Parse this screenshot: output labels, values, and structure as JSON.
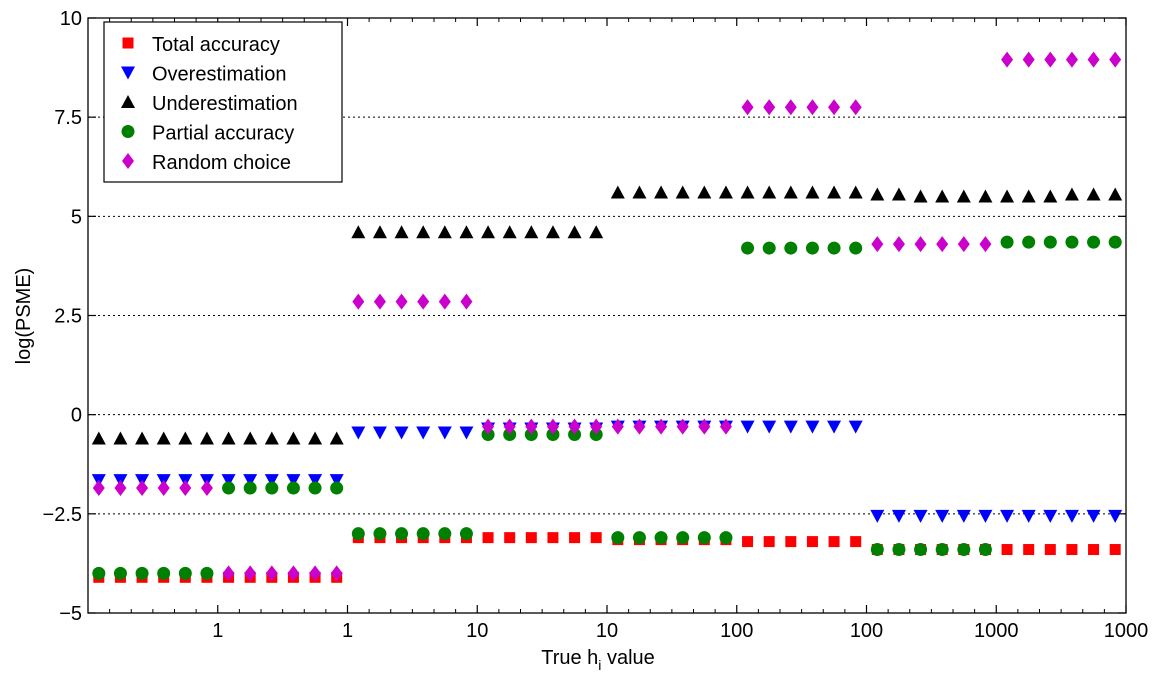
{
  "chart_data": {
    "type": "scatter",
    "title": "",
    "xlabel": {
      "prefix": "True h",
      "subscript": "i",
      "suffix": " value"
    },
    "ylabel": "log(PSME)",
    "ylim": [
      -5,
      10
    ],
    "yticks": [
      -5,
      -2.5,
      0,
      2.5,
      5,
      7.5,
      10
    ],
    "ytick_labels": [
      "−5",
      "−2.5",
      "0",
      "2.5",
      "5",
      "7.5",
      "10"
    ],
    "grid": "horizontal dotted lines at y ticks",
    "legend_position": "top-left",
    "x_tick_labels": [
      "1",
      "1",
      "10",
      "10",
      "100",
      "100",
      "1000",
      "1000"
    ],
    "series": [
      {
        "name": "Total accuracy",
        "marker": "square",
        "color": "#ff0000",
        "points": [
          [
            0.5,
            -4.1
          ],
          [
            1.5,
            -4.1
          ],
          [
            2.5,
            -4.1
          ],
          [
            3.5,
            -4.1
          ],
          [
            4.5,
            -4.1
          ],
          [
            5.5,
            -4.1
          ],
          [
            6.5,
            -4.1
          ],
          [
            7.5,
            -4.1
          ],
          [
            8.5,
            -4.1
          ],
          [
            9.5,
            -4.1
          ],
          [
            10.5,
            -4.1
          ],
          [
            11.5,
            -4.1
          ],
          [
            12.5,
            -3.1
          ],
          [
            13.5,
            -3.1
          ],
          [
            14.5,
            -3.1
          ],
          [
            15.5,
            -3.1
          ],
          [
            16.5,
            -3.1
          ],
          [
            17.5,
            -3.1
          ],
          [
            18.5,
            -3.1
          ],
          [
            19.5,
            -3.1
          ],
          [
            20.5,
            -3.1
          ],
          [
            21.5,
            -3.1
          ],
          [
            22.5,
            -3.1
          ],
          [
            23.5,
            -3.1
          ],
          [
            24.5,
            -3.15
          ],
          [
            25.5,
            -3.15
          ],
          [
            26.5,
            -3.15
          ],
          [
            27.5,
            -3.15
          ],
          [
            28.5,
            -3.15
          ],
          [
            29.5,
            -3.15
          ],
          [
            30.5,
            -3.2
          ],
          [
            31.5,
            -3.2
          ],
          [
            32.5,
            -3.2
          ],
          [
            33.5,
            -3.2
          ],
          [
            34.5,
            -3.2
          ],
          [
            35.5,
            -3.2
          ],
          [
            36.5,
            -3.4
          ],
          [
            37.5,
            -3.4
          ],
          [
            38.5,
            -3.4
          ],
          [
            39.5,
            -3.4
          ],
          [
            40.5,
            -3.4
          ],
          [
            41.5,
            -3.4
          ],
          [
            42.5,
            -3.4
          ],
          [
            43.5,
            -3.4
          ],
          [
            44.5,
            -3.4
          ],
          [
            45.5,
            -3.4
          ],
          [
            46.5,
            -3.4
          ],
          [
            47.5,
            -3.4
          ]
        ]
      },
      {
        "name": "Overestimation",
        "marker": "triangle-down",
        "color": "#0000ff",
        "points": [
          [
            0.5,
            -1.65
          ],
          [
            1.5,
            -1.65
          ],
          [
            2.5,
            -1.65
          ],
          [
            3.5,
            -1.65
          ],
          [
            4.5,
            -1.65
          ],
          [
            5.5,
            -1.65
          ],
          [
            6.5,
            -1.65
          ],
          [
            7.5,
            -1.65
          ],
          [
            8.5,
            -1.65
          ],
          [
            9.5,
            -1.65
          ],
          [
            10.5,
            -1.65
          ],
          [
            11.5,
            -1.65
          ],
          [
            12.5,
            -0.45
          ],
          [
            13.5,
            -0.45
          ],
          [
            14.5,
            -0.45
          ],
          [
            15.5,
            -0.45
          ],
          [
            16.5,
            -0.45
          ],
          [
            17.5,
            -0.45
          ],
          [
            18.5,
            -0.35
          ],
          [
            19.5,
            -0.35
          ],
          [
            20.5,
            -0.35
          ],
          [
            21.5,
            -0.35
          ],
          [
            22.5,
            -0.35
          ],
          [
            23.5,
            -0.35
          ],
          [
            24.5,
            -0.3
          ],
          [
            25.5,
            -0.3
          ],
          [
            26.5,
            -0.3
          ],
          [
            27.5,
            -0.3
          ],
          [
            28.5,
            -0.3
          ],
          [
            29.5,
            -0.3
          ],
          [
            30.5,
            -0.3
          ],
          [
            31.5,
            -0.3
          ],
          [
            32.5,
            -0.3
          ],
          [
            33.5,
            -0.3
          ],
          [
            34.5,
            -0.3
          ],
          [
            35.5,
            -0.3
          ],
          [
            36.5,
            -2.55
          ],
          [
            37.5,
            -2.55
          ],
          [
            38.5,
            -2.55
          ],
          [
            39.5,
            -2.55
          ],
          [
            40.5,
            -2.55
          ],
          [
            41.5,
            -2.55
          ],
          [
            42.5,
            -2.55
          ],
          [
            43.5,
            -2.55
          ],
          [
            44.5,
            -2.55
          ],
          [
            45.5,
            -2.55
          ],
          [
            46.5,
            -2.55
          ],
          [
            47.5,
            -2.55
          ]
        ]
      },
      {
        "name": "Underestimation",
        "marker": "triangle-up",
        "color": "#000000",
        "points": [
          [
            0.5,
            -0.6
          ],
          [
            1.5,
            -0.6
          ],
          [
            2.5,
            -0.6
          ],
          [
            3.5,
            -0.6
          ],
          [
            4.5,
            -0.6
          ],
          [
            5.5,
            -0.6
          ],
          [
            6.5,
            -0.6
          ],
          [
            7.5,
            -0.6
          ],
          [
            8.5,
            -0.6
          ],
          [
            9.5,
            -0.6
          ],
          [
            10.5,
            -0.6
          ],
          [
            11.5,
            -0.6
          ],
          [
            12.5,
            4.6
          ],
          [
            13.5,
            4.6
          ],
          [
            14.5,
            4.6
          ],
          [
            15.5,
            4.6
          ],
          [
            16.5,
            4.6
          ],
          [
            17.5,
            4.6
          ],
          [
            18.5,
            4.6
          ],
          [
            19.5,
            4.6
          ],
          [
            20.5,
            4.6
          ],
          [
            21.5,
            4.6
          ],
          [
            22.5,
            4.6
          ],
          [
            23.5,
            4.6
          ],
          [
            24.5,
            5.6
          ],
          [
            25.5,
            5.6
          ],
          [
            26.5,
            5.6
          ],
          [
            27.5,
            5.6
          ],
          [
            28.5,
            5.6
          ],
          [
            29.5,
            5.6
          ],
          [
            30.5,
            5.6
          ],
          [
            31.5,
            5.6
          ],
          [
            32.5,
            5.6
          ],
          [
            33.5,
            5.6
          ],
          [
            34.5,
            5.6
          ],
          [
            35.5,
            5.6
          ],
          [
            36.5,
            5.55
          ],
          [
            37.5,
            5.55
          ],
          [
            38.5,
            5.5
          ],
          [
            39.5,
            5.5
          ],
          [
            40.5,
            5.5
          ],
          [
            41.5,
            5.5
          ],
          [
            42.5,
            5.5
          ],
          [
            43.5,
            5.5
          ],
          [
            44.5,
            5.5
          ],
          [
            45.5,
            5.55
          ],
          [
            46.5,
            5.55
          ],
          [
            47.5,
            5.55
          ]
        ]
      },
      {
        "name": "Partial accuracy",
        "marker": "circle",
        "color": "#008000",
        "points": [
          [
            0.5,
            -4.0
          ],
          [
            1.5,
            -4.0
          ],
          [
            2.5,
            -4.0
          ],
          [
            3.5,
            -4.0
          ],
          [
            4.5,
            -4.0
          ],
          [
            5.5,
            -4.0
          ],
          [
            6.5,
            -1.85
          ],
          [
            7.5,
            -1.85
          ],
          [
            8.5,
            -1.85
          ],
          [
            9.5,
            -1.85
          ],
          [
            10.5,
            -1.85
          ],
          [
            11.5,
            -1.85
          ],
          [
            12.5,
            -3.0
          ],
          [
            13.5,
            -3.0
          ],
          [
            14.5,
            -3.0
          ],
          [
            15.5,
            -3.0
          ],
          [
            16.5,
            -3.0
          ],
          [
            17.5,
            -3.0
          ],
          [
            18.5,
            -0.5
          ],
          [
            19.5,
            -0.5
          ],
          [
            20.5,
            -0.5
          ],
          [
            21.5,
            -0.5
          ],
          [
            22.5,
            -0.5
          ],
          [
            23.5,
            -0.5
          ],
          [
            24.5,
            -3.1
          ],
          [
            25.5,
            -3.1
          ],
          [
            26.5,
            -3.1
          ],
          [
            27.5,
            -3.1
          ],
          [
            28.5,
            -3.1
          ],
          [
            29.5,
            -3.1
          ],
          [
            30.5,
            4.2
          ],
          [
            31.5,
            4.2
          ],
          [
            32.5,
            4.2
          ],
          [
            33.5,
            4.2
          ],
          [
            34.5,
            4.2
          ],
          [
            35.5,
            4.2
          ],
          [
            36.5,
            -3.4
          ],
          [
            37.5,
            -3.4
          ],
          [
            38.5,
            -3.4
          ],
          [
            39.5,
            -3.4
          ],
          [
            40.5,
            -3.4
          ],
          [
            41.5,
            -3.4
          ],
          [
            42.5,
            4.35
          ],
          [
            43.5,
            4.35
          ],
          [
            44.5,
            4.35
          ],
          [
            45.5,
            4.35
          ],
          [
            46.5,
            4.35
          ],
          [
            47.5,
            4.35
          ]
        ]
      },
      {
        "name": "Random choice",
        "marker": "diamond",
        "color": "#cc00cc",
        "points": [
          [
            0.5,
            -1.85
          ],
          [
            1.5,
            -1.85
          ],
          [
            2.5,
            -1.85
          ],
          [
            3.5,
            -1.85
          ],
          [
            4.5,
            -1.85
          ],
          [
            5.5,
            -1.85
          ],
          [
            6.5,
            -4.0
          ],
          [
            7.5,
            -4.0
          ],
          [
            8.5,
            -4.0
          ],
          [
            9.5,
            -4.0
          ],
          [
            10.5,
            -4.0
          ],
          [
            11.5,
            -4.0
          ],
          [
            12.5,
            2.85
          ],
          [
            13.5,
            2.85
          ],
          [
            14.5,
            2.85
          ],
          [
            15.5,
            2.85
          ],
          [
            16.5,
            2.85
          ],
          [
            17.5,
            2.85
          ],
          [
            18.5,
            -0.3
          ],
          [
            19.5,
            -0.3
          ],
          [
            20.5,
            -0.3
          ],
          [
            21.5,
            -0.3
          ],
          [
            22.5,
            -0.3
          ],
          [
            23.5,
            -0.3
          ],
          [
            24.5,
            -0.3
          ],
          [
            25.5,
            -0.3
          ],
          [
            26.5,
            -0.3
          ],
          [
            27.5,
            -0.3
          ],
          [
            28.5,
            -0.3
          ],
          [
            29.5,
            -0.3
          ],
          [
            30.5,
            7.75
          ],
          [
            31.5,
            7.75
          ],
          [
            32.5,
            7.75
          ],
          [
            33.5,
            7.75
          ],
          [
            34.5,
            7.75
          ],
          [
            35.5,
            7.75
          ],
          [
            36.5,
            4.3
          ],
          [
            37.5,
            4.3
          ],
          [
            38.5,
            4.3
          ],
          [
            39.5,
            4.3
          ],
          [
            40.5,
            4.3
          ],
          [
            41.5,
            4.3
          ],
          [
            42.5,
            8.95
          ],
          [
            43.5,
            8.95
          ],
          [
            44.5,
            8.95
          ],
          [
            45.5,
            8.95
          ],
          [
            46.5,
            8.95
          ],
          [
            47.5,
            8.95
          ]
        ]
      }
    ]
  }
}
